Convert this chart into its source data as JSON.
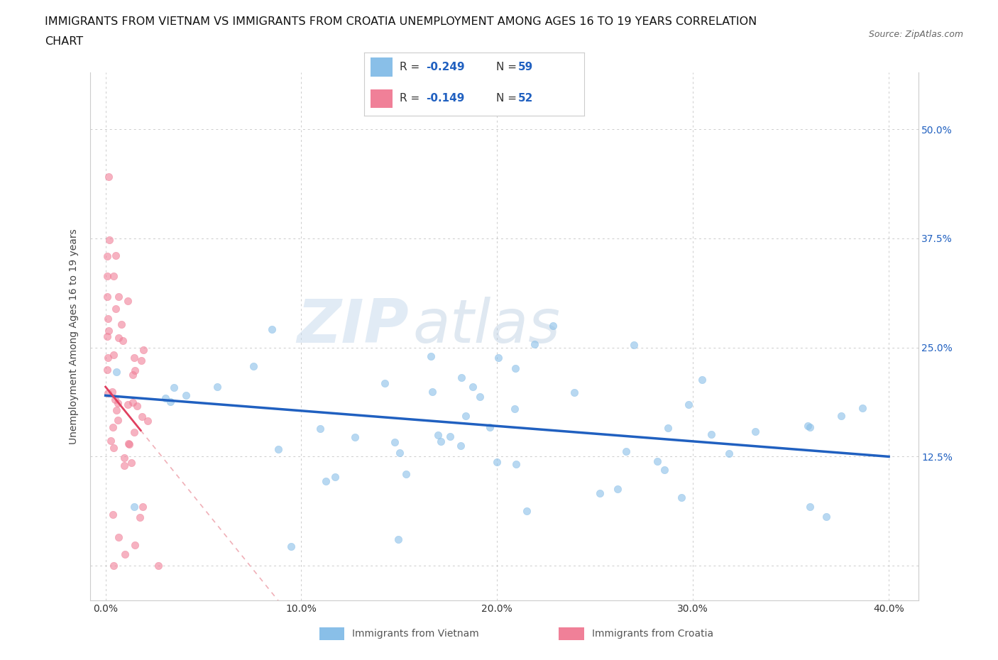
{
  "title_line1": "IMMIGRANTS FROM VIETNAM VS IMMIGRANTS FROM CROATIA UNEMPLOYMENT AMONG AGES 16 TO 19 YEARS CORRELATION",
  "title_line2": "CHART",
  "source_text": "Source: ZipAtlas.com",
  "xlabel_vietnam": "Immigrants from Vietnam",
  "xlabel_croatia": "Immigrants from Croatia",
  "ylabel": "Unemployment Among Ages 16 to 19 years",
  "watermark_part1": "ZIP",
  "watermark_part2": "atlas",
  "vietnam_color": "#89bfe8",
  "croatia_color": "#f08098",
  "vietnam_line_color": "#2060c0",
  "croatia_line_color": "#e04060",
  "croatia_dash_color": "#f0b0b8",
  "label_color": "#2060c0",
  "R_vietnam": -0.249,
  "N_vietnam": 59,
  "R_croatia": -0.149,
  "N_croatia": 52,
  "y_tick_vals": [
    0.0,
    0.125,
    0.25,
    0.375,
    0.5
  ],
  "y_tick_labels": [
    "",
    "12.5%",
    "25.0%",
    "37.5%",
    "50.0%"
  ],
  "x_tick_vals": [
    0.0,
    0.1,
    0.2,
    0.3,
    0.4
  ],
  "x_tick_labels": [
    "0.0%",
    "10.0%",
    "20.0%",
    "30.0%",
    "40.0%"
  ]
}
